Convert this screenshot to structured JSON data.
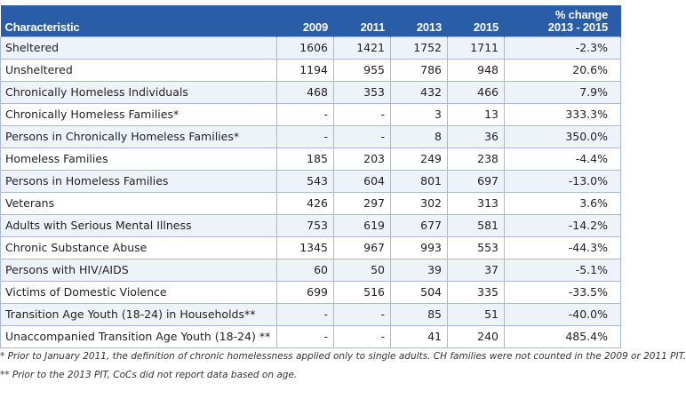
{
  "table": {
    "headers": {
      "characteristic": "Characteristic",
      "y2009": "2009",
      "y2011": "2011",
      "y2013": "2013",
      "y2015": "2015",
      "pct_line1": "% change",
      "pct_line2": "2013 - 2015"
    },
    "rows": [
      [
        "Sheltered",
        "1606",
        "1421",
        "1752",
        "1711",
        "-2.3%"
      ],
      [
        "Unsheltered",
        "1194",
        "955",
        "786",
        "948",
        "20.6%"
      ],
      [
        "Chronically Homeless Individuals",
        "468",
        "353",
        "432",
        "466",
        "7.9%"
      ],
      [
        "Chronically Homeless Families*",
        "-",
        "-",
        "3",
        "13",
        "333.3%"
      ],
      [
        "Persons in Chronically Homeless Families*",
        "-",
        "-",
        "8",
        "36",
        "350.0%"
      ],
      [
        "Homeless Families",
        "185",
        "203",
        "249",
        "238",
        "-4.4%"
      ],
      [
        "Persons in Homeless Families",
        "543",
        "604",
        "801",
        "697",
        "-13.0%"
      ],
      [
        "Veterans",
        "426",
        "297",
        "302",
        "313",
        "3.6%"
      ],
      [
        "Adults with Serious Mental Illness",
        "753",
        "619",
        "677",
        "581",
        "-14.2%"
      ],
      [
        "Chronic Substance Abuse",
        "1345",
        "967",
        "993",
        "553",
        "-44.3%"
      ],
      [
        "Persons with HIV/AIDS",
        "60",
        "50",
        "39",
        "37",
        "-5.1%"
      ],
      [
        "Victims of Domestic Violence",
        "699",
        "516",
        "504",
        "335",
        "-33.5%"
      ],
      [
        "Transition Age Youth (18-24) in Households**",
        "-",
        "-",
        "85",
        "51",
        "-40.0%"
      ],
      [
        "Unaccompanied Transition Age Youth (18-24) **",
        "-",
        "-",
        "41",
        "240",
        "485.4%"
      ]
    ]
  },
  "footnotes": {
    "note1": "* Prior to January 2011, the definition of chronic homelessness applied only to single adults. CH families were not counted in the 2009 or 2011 PIT.",
    "note2": "** Prior to the 2013 PIT, CoCs did not report data based on age."
  },
  "colors": {
    "header_bg": "#2a5da8",
    "row_alt": "#eef2f9",
    "border": "#a9b9d6"
  }
}
